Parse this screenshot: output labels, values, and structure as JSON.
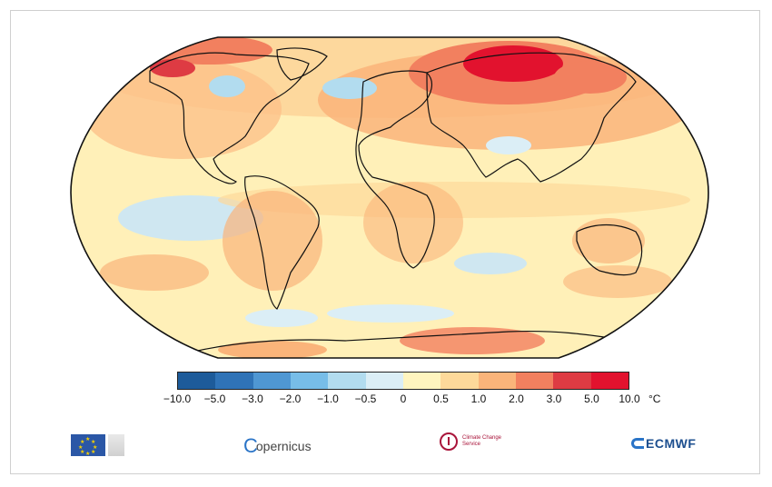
{
  "map": {
    "projection": "robinson",
    "variable": "temperature anomaly",
    "colors": {
      "outline": "#111111",
      "coast": "#111111"
    }
  },
  "colorbar": {
    "colors": [
      "#1d5b9a",
      "#2f73b7",
      "#4f97d3",
      "#77bde8",
      "#b2dcef",
      "#dbeef6",
      "#fff5bf",
      "#fdd99a",
      "#fab47a",
      "#f2805f",
      "#de3b43",
      "#e2122e",
      "#b40f24"
    ],
    "ticks": [
      "−10.0",
      "−5.0",
      "−3.0",
      "−2.0",
      "−1.0",
      "−0.5",
      "0",
      "0.5",
      "1.0",
      "2.0",
      "3.0",
      "5.0",
      "10.0"
    ],
    "unit": "°C"
  },
  "logos": {
    "copernicus": "opernicus",
    "copernicus_mark": "C",
    "c3s_text": "Climate Change Service",
    "ecmwf": "ECMWF"
  }
}
